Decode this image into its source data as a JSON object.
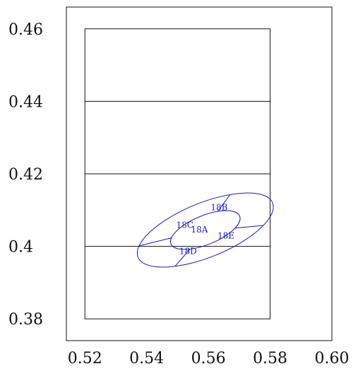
{
  "chart_data": {
    "type": "other",
    "title": "",
    "xlabel": "",
    "ylabel": "",
    "xlim": [
      0.514,
      0.6
    ],
    "ylim": [
      0.374,
      0.466
    ],
    "x_ticks": [
      {
        "value": 0.52,
        "label": "0.52"
      },
      {
        "value": 0.54,
        "label": "0.54"
      },
      {
        "value": 0.56,
        "label": "0.56"
      },
      {
        "value": 0.58,
        "label": "0.58"
      },
      {
        "value": 0.6,
        "label": "0.60"
      }
    ],
    "y_ticks": [
      {
        "value": 0.46,
        "label": "0.46"
      },
      {
        "value": 0.44,
        "label": "0.44"
      },
      {
        "value": 0.42,
        "label": "0.42"
      },
      {
        "value": 0.4,
        "label": "0.4"
      },
      {
        "value": 0.38,
        "label": "0.38"
      }
    ],
    "inner_box": {
      "x_min": 0.52,
      "x_max": 0.58,
      "y_min": 0.38,
      "y_max": 0.46
    },
    "horizontal_lines_y": [
      0.44,
      0.42,
      0.4
    ],
    "ellipse": {
      "center": [
        0.559,
        0.4045
      ],
      "outer_radii": [
        0.0235,
        0.0075
      ],
      "inner_radii": [
        0.012,
        0.004
      ],
      "rotation_deg": -22,
      "ring_divider_angles_deg": [
        60,
        158,
        235,
        320
      ],
      "regions": [
        {
          "label": "18A",
          "x": 0.5571,
          "y": 0.4046
        },
        {
          "label": "18B",
          "x": 0.5635,
          "y": 0.4107
        },
        {
          "label": "18C",
          "x": 0.5524,
          "y": 0.4059
        },
        {
          "label": "18D",
          "x": 0.5534,
          "y": 0.3987
        },
        {
          "label": "18E",
          "x": 0.5657,
          "y": 0.4029
        }
      ]
    },
    "colors": {
      "frame": "#111111",
      "ellipse": "#1a1acc",
      "labels": "#1a1acc"
    }
  }
}
